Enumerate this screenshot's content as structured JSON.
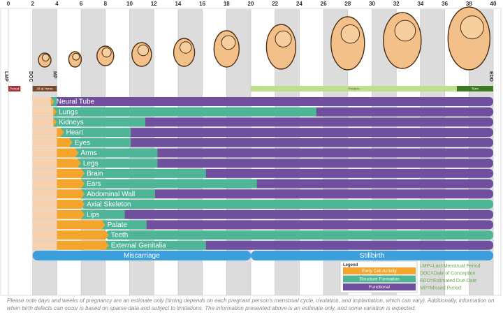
{
  "axis": {
    "xlim": [
      0,
      40
    ],
    "ticks": [
      0,
      2,
      4,
      6,
      8,
      10,
      12,
      14,
      16,
      18,
      20,
      22,
      24,
      26,
      28,
      30,
      32,
      34,
      36,
      38,
      40
    ]
  },
  "markers": [
    {
      "label": "LMP",
      "week": 0
    },
    {
      "label": "DOC",
      "week": 2
    },
    {
      "label": "MP",
      "week": 4
    },
    {
      "label": "EDD",
      "week": 40
    }
  ],
  "periods": [
    {
      "label": "Period",
      "start": 0,
      "end": 1,
      "color": "#a83232"
    },
    {
      "label": "All at Home",
      "start": 2,
      "end": 4,
      "color": "#7a4a2a"
    },
    {
      "label": "Preterm",
      "start": 20,
      "end": 37,
      "color": "#bfe08a"
    },
    {
      "label": "Term",
      "start": 37,
      "end": 40,
      "color": "#3e7a26"
    }
  ],
  "rows": [
    {
      "label": "Neural Tube",
      "early_start": 2,
      "structure_start": 3.5,
      "functional_start": 4
    },
    {
      "label": "Lungs",
      "early_start": 2,
      "structure_start": 3.7,
      "functional_start": 25.4
    },
    {
      "label": "Kidneys",
      "early_start": 2,
      "structure_start": 3.7,
      "functional_start": 11.3
    },
    {
      "label": "Heart",
      "early_start": 2,
      "structure_start": 4.3,
      "functional_start": 10.1
    },
    {
      "label": "Eyes",
      "early_start": 2,
      "structure_start": 5,
      "functional_start": 10.1
    },
    {
      "label": "Arms",
      "early_start": 2,
      "structure_start": 5.5,
      "functional_start": 12.3
    },
    {
      "label": "Legs",
      "early_start": 2,
      "structure_start": 5.7,
      "functional_start": 12.3
    },
    {
      "label": "Brain",
      "early_start": 2,
      "structure_start": 6,
      "functional_start": 16.3
    },
    {
      "label": "Ears",
      "early_start": 2,
      "structure_start": 6,
      "functional_start": 20.5
    },
    {
      "label": "Abdominal Wall",
      "early_start": 2,
      "structure_start": 6,
      "functional_start": 12.1
    },
    {
      "label": "Axial Skeleton",
      "early_start": 2,
      "structure_start": 6,
      "functional_start": null
    },
    {
      "label": "Lips",
      "early_start": 2,
      "structure_start": 6,
      "functional_start": 9.6
    },
    {
      "label": "Palate",
      "early_start": 2,
      "structure_start": 7.7,
      "functional_start": 11.4
    },
    {
      "label": "Teeth",
      "early_start": 2,
      "structure_start": 8,
      "functional_start": null
    },
    {
      "label": "External Genitalia",
      "early_start": 2,
      "structure_start": 8,
      "functional_start": 16.3
    }
  ],
  "outcomes": [
    {
      "label": "Miscarriage",
      "start": 2,
      "end": 20
    },
    {
      "label": "Stillbirth",
      "start": 20,
      "end": 40
    }
  ],
  "legend": {
    "title": "Legend",
    "items": [
      {
        "label": "Early Cell Activity",
        "color": "#f5a52c"
      },
      {
        "label": "Structure Formation",
        "color": "#4fb597"
      },
      {
        "label": "Functional",
        "color": "#70509e"
      }
    ]
  },
  "notes": [
    "LMP=Last Menstrual Period",
    "DOC=Date of Conception",
    "EDD=Estimated Due Date",
    "MP=Missed Period"
  ],
  "footnote": "Please note days and weeks of pregnancy are an estimate only (timing depends on each pregnant person's menstrual cycle, ovulation, and implantation, which can vary). Additionally, information on when birth defects can occur is based on sparse data and subject to limitations. The information presented above is an estimate only, and some variation is expected."
}
